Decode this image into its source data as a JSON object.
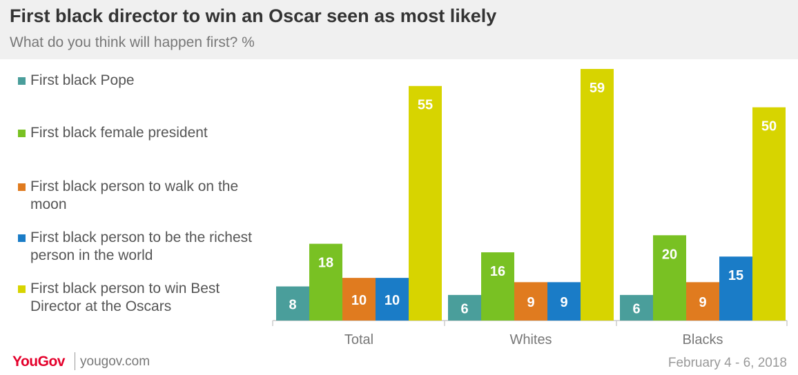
{
  "header": {
    "title": "First black director to win an Oscar seen as most likely",
    "subtitle": "What do you think will happen first? %"
  },
  "footer": {
    "logo": "YouGov",
    "site": "yougov.com",
    "date": "February 4 - 6, 2018"
  },
  "chart_data": {
    "type": "bar",
    "categories": [
      "Total",
      "Whites",
      "Blacks"
    ],
    "series": [
      {
        "name": "First black Pope",
        "color": "#4a9e9b",
        "values": [
          8,
          6,
          6
        ]
      },
      {
        "name": "First black female president",
        "color": "#79c123",
        "values": [
          18,
          16,
          20
        ]
      },
      {
        "name": "First black person to walk on the moon",
        "color": "#e07b1f",
        "values": [
          10,
          9,
          9
        ]
      },
      {
        "name": "First black person to be the richest person in the world",
        "color": "#1a7cc7",
        "values": [
          10,
          9,
          15
        ]
      },
      {
        "name": "First black person to win Best Director at the Oscars",
        "color": "#d7d400",
        "values": [
          55,
          59,
          50
        ]
      }
    ],
    "ylim": [
      0,
      60
    ],
    "grid": false,
    "legend": "left",
    "data_labels": true
  }
}
